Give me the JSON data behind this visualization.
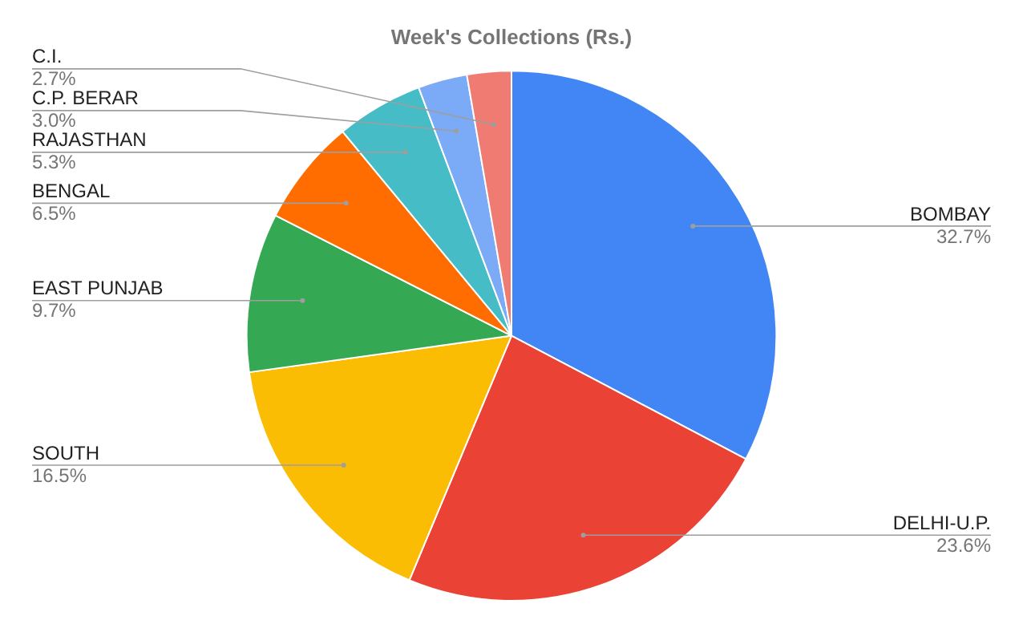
{
  "chart_data": {
    "type": "pie",
    "title": "Week's Collections (Rs.)",
    "categories": [
      "BOMBAY",
      "DELHI-U.P.",
      "SOUTH",
      "EAST PUNJAB",
      "BENGAL",
      "RAJASTHAN",
      "C.P. BERAR",
      "C.I."
    ],
    "values": [
      32.7,
      23.6,
      16.5,
      9.7,
      6.5,
      5.3,
      3.0,
      2.7
    ],
    "colors": [
      "#4285f4",
      "#ea4335",
      "#fbbc04",
      "#34a853",
      "#ff6d01",
      "#46bdc6",
      "#7baaf7",
      "#f07b72"
    ],
    "value_labels": [
      "32.7%",
      "23.6%",
      "16.5%",
      "9.7%",
      "6.5%",
      "5.3%",
      "3.0%",
      "2.7%"
    ],
    "legend": false
  }
}
